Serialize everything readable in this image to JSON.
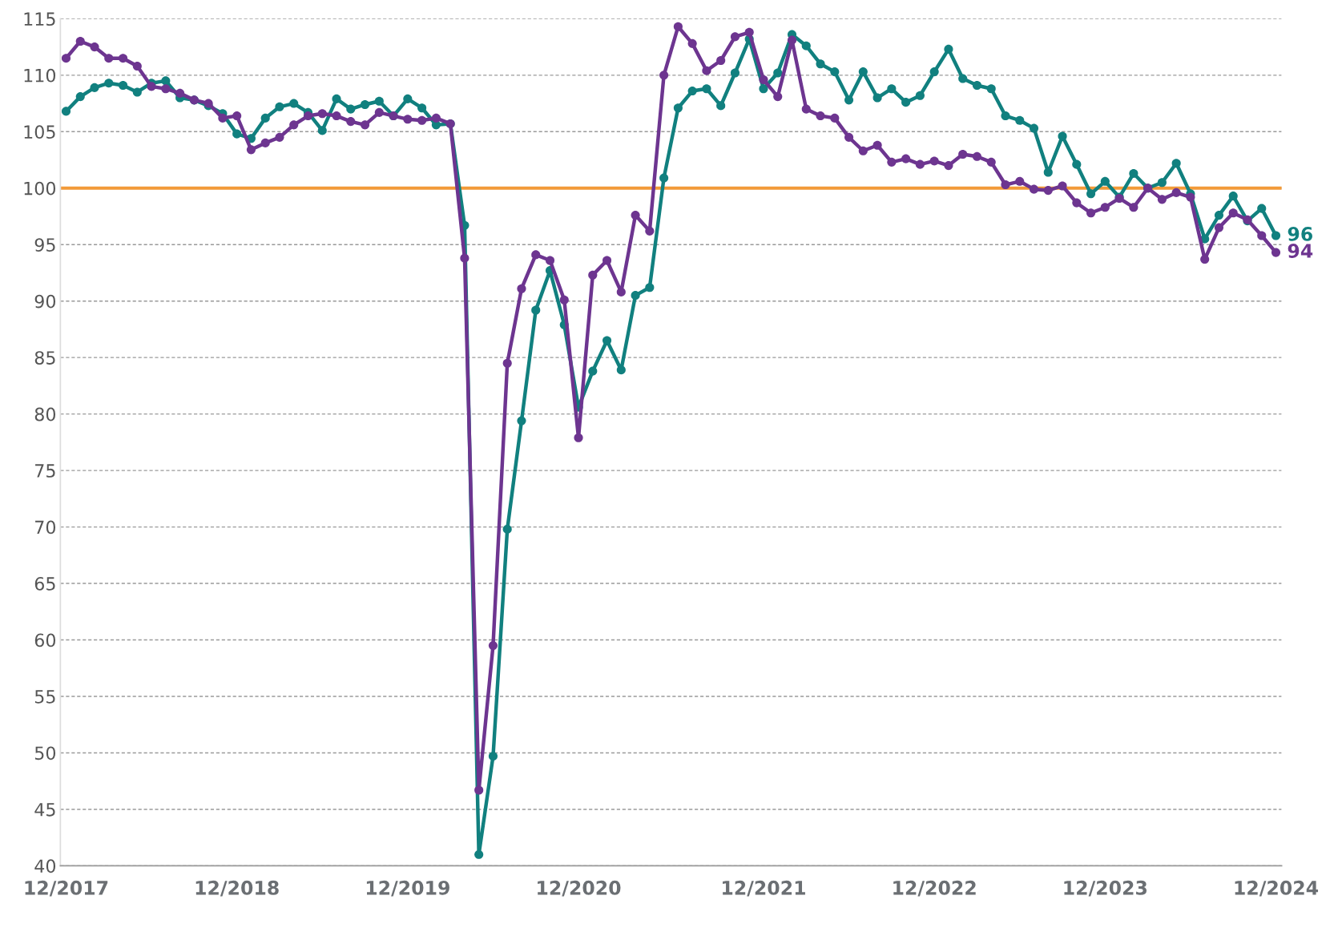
{
  "chart_data": {
    "type": "line",
    "categories": [
      "12/2017",
      null,
      null,
      null,
      null,
      null,
      null,
      null,
      null,
      null,
      null,
      null,
      "12/2018",
      null,
      null,
      null,
      null,
      null,
      null,
      null,
      null,
      null,
      null,
      null,
      "12/2019",
      null,
      null,
      null,
      null,
      null,
      null,
      null,
      null,
      null,
      null,
      null,
      "12/2020",
      null,
      null,
      null,
      null,
      null,
      null,
      null,
      null,
      null,
      null,
      null,
      null,
      "12/2021",
      null,
      null,
      null,
      null,
      null,
      null,
      null,
      null,
      null,
      null,
      null,
      "12/2022",
      null,
      null,
      null,
      null,
      null,
      null,
      null,
      null,
      null,
      null,
      null,
      "12/2023",
      null,
      null,
      null,
      null,
      null,
      null,
      null,
      null,
      null,
      null,
      null,
      "12/2024"
    ],
    "series": [
      {
        "color": "#11807f",
        "value_labels": [
          null,
          null,
          null,
          null,
          null,
          null,
          null,
          null,
          null,
          null,
          null,
          null,
          null,
          null,
          null,
          null,
          null,
          null,
          null,
          null,
          null,
          null,
          null,
          null,
          null,
          null,
          null,
          null,
          null,
          null,
          null,
          null,
          null,
          null,
          null,
          null,
          null,
          null,
          null,
          null,
          null,
          null,
          null,
          null,
          null,
          null,
          null,
          null,
          null,
          null,
          null,
          null,
          null,
          null,
          null,
          null,
          null,
          null,
          null,
          null,
          null,
          null,
          null,
          null,
          null,
          null,
          null,
          null,
          null,
          null,
          null,
          null,
          null,
          null,
          null,
          null,
          null,
          null,
          null,
          null,
          null,
          null,
          null,
          null,
          null,
          "96"
        ],
        "values": [
          106.8,
          108.1,
          108.9,
          109.3,
          109.1,
          108.5,
          109.3,
          109.5,
          108.0,
          107.8,
          107.3,
          106.6,
          104.8,
          104.4,
          106.2,
          107.2,
          107.5,
          106.7,
          105.1,
          107.9,
          107.0,
          107.4,
          107.7,
          106.4,
          107.9,
          107.1,
          105.6,
          105.7,
          96.7,
          41.0,
          49.7,
          69.8,
          79.4,
          89.2,
          92.7,
          87.9,
          80.6,
          83.8,
          86.5,
          83.9,
          90.5,
          91.2,
          100.9,
          107.1,
          108.6,
          108.8,
          107.3,
          110.2,
          113.2,
          108.8,
          110.2,
          113.6,
          112.6,
          111.0,
          110.3,
          107.8,
          110.3,
          108.0,
          108.8,
          107.6,
          108.2,
          110.3,
          112.3,
          109.7,
          109.1,
          108.8,
          106.4,
          106.0,
          105.3,
          101.4,
          104.6,
          102.1,
          99.5,
          100.6,
          99.2,
          101.3,
          100.0,
          100.5,
          102.2,
          99.5,
          95.5,
          97.6,
          99.3,
          97.1,
          98.2,
          95.8
        ]
      },
      {
        "color": "#6d3590",
        "value_labels": [
          null,
          null,
          null,
          null,
          null,
          null,
          null,
          null,
          null,
          null,
          null,
          null,
          null,
          null,
          null,
          null,
          null,
          null,
          null,
          null,
          null,
          null,
          null,
          null,
          null,
          null,
          null,
          null,
          null,
          null,
          null,
          null,
          null,
          null,
          null,
          null,
          null,
          null,
          null,
          null,
          null,
          null,
          null,
          null,
          null,
          null,
          null,
          null,
          null,
          null,
          null,
          null,
          null,
          null,
          null,
          null,
          null,
          null,
          null,
          null,
          null,
          null,
          null,
          null,
          null,
          null,
          null,
          null,
          null,
          null,
          null,
          null,
          null,
          null,
          null,
          null,
          null,
          null,
          null,
          null,
          null,
          null,
          null,
          null,
          null,
          "94"
        ],
        "values": [
          111.5,
          113.0,
          112.5,
          111.5,
          111.5,
          110.8,
          109.0,
          108.8,
          108.4,
          107.8,
          107.5,
          106.2,
          106.4,
          103.4,
          104.0,
          104.5,
          105.6,
          106.4,
          106.6,
          106.4,
          105.9,
          105.6,
          106.7,
          106.4,
          106.1,
          106.0,
          106.2,
          105.7,
          93.8,
          46.7,
          59.5,
          84.5,
          91.1,
          94.1,
          93.6,
          90.1,
          77.9,
          92.3,
          93.6,
          90.8,
          97.6,
          96.2,
          110.0,
          114.3,
          112.8,
          110.4,
          111.3,
          113.4,
          113.8,
          109.6,
          108.1,
          113.1,
          107.0,
          106.4,
          106.2,
          104.5,
          103.3,
          103.8,
          102.3,
          102.6,
          102.1,
          102.4,
          102.0,
          103.0,
          102.8,
          102.3,
          100.3,
          100.6,
          99.9,
          99.8,
          100.2,
          98.7,
          97.8,
          98.3,
          99.1,
          98.3,
          100.0,
          99.0,
          99.6,
          99.2,
          93.7,
          96.5,
          97.8,
          97.2,
          95.8,
          94.3
        ]
      }
    ],
    "ylim": [
      40,
      115
    ],
    "yticks": [
      40,
      45,
      50,
      55,
      60,
      65,
      70,
      75,
      80,
      85,
      90,
      95,
      100,
      105,
      110,
      115
    ],
    "ref_lines": [
      {
        "axis": "y",
        "value": 100,
        "color": "#f29a38",
        "line_style": "solid"
      }
    ],
    "grid": "y",
    "marker": "circle",
    "line_style": "solid",
    "legend": false
  }
}
